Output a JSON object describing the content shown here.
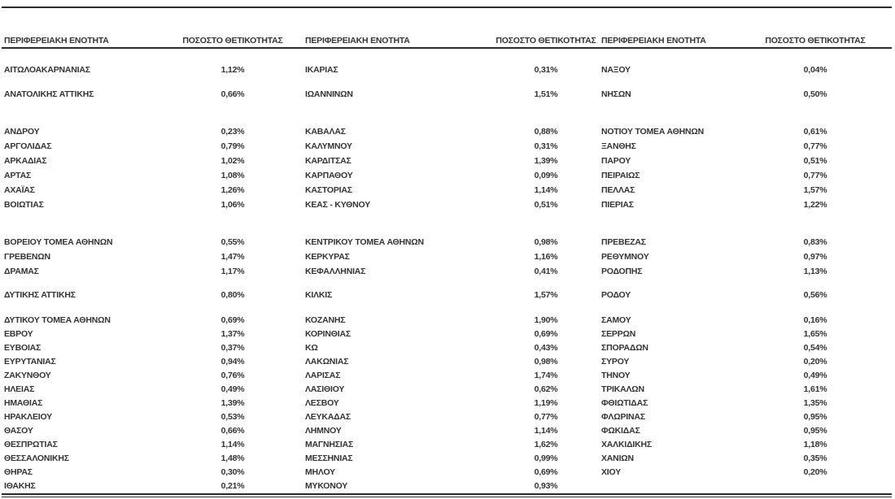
{
  "table": {
    "col_headers": {
      "region": "ΠΕΡΙΦΕΡΕΙΑΚΗ ΕΝΟΤΗΤΑ",
      "positivity": "ΠΟΣΟΣΤΟ ΘΕΤΙΚΟΤΗΤΑΣ"
    },
    "rows": [
      [
        "ΑΙΤΩΛΟΑΚΑΡΝΑΝΙΑΣ",
        "1,12%",
        "ΙΚΑΡΙΑΣ",
        "0,31%",
        "ΝΑΞΟΥ",
        "0,04%"
      ],
      [
        "ΑΝΑΤΟΛΙΚΗΣ ΑΤΤΙΚΗΣ",
        "0,66%",
        "ΙΩΑΝΝΙΝΩΝ",
        "1,51%",
        "ΝΗΣΩΝ",
        "0,50%"
      ],
      [
        "ΑΝΔΡΟΥ",
        "0,23%",
        "ΚΑΒΑΛΑΣ",
        "0,88%",
        "ΝΟΤΙΟΥ ΤΟΜΕΑ ΑΘΗΝΩΝ",
        "0,61%"
      ],
      [
        "ΑΡΓΟΛΙΔΑΣ",
        "0,79%",
        "ΚΑΛΥΜΝΟΥ",
        "0,31%",
        "ΞΑΝΘΗΣ",
        "0,77%"
      ],
      [
        "ΑΡΚΑΔΙΑΣ",
        "1,02%",
        "ΚΑΡΔΙΤΣΑΣ",
        "1,39%",
        "ΠΑΡΟΥ",
        "0,51%"
      ],
      [
        "ΑΡΤΑΣ",
        "1,08%",
        "ΚΑΡΠΑΘΟΥ",
        "0,09%",
        "ΠΕΙΡΑΙΩΣ",
        "0,77%"
      ],
      [
        "ΑΧΑΪΑΣ",
        "1,26%",
        "ΚΑΣΤΟΡΙΑΣ",
        "1,14%",
        "ΠΕΛΛΑΣ",
        "1,57%"
      ],
      [
        "ΒΟΙΩΤΙΑΣ",
        "1,06%",
        "ΚΕΑΣ - ΚΥΘΝΟΥ",
        "0,51%",
        "ΠΙΕΡΙΑΣ",
        "1,22%"
      ],
      [
        "ΒΟΡΕΙΟΥ ΤΟΜΕΑ ΑΘΗΝΩΝ",
        "0,55%",
        "ΚΕΝΤΡΙΚΟΥ ΤΟΜΕΑ ΑΘΗΝΩΝ",
        "0,98%",
        "ΠΡΕΒΕΖΑΣ",
        "0,83%"
      ],
      [
        "ΓΡΕΒΕΝΩΝ",
        "1,47%",
        "ΚΕΡΚΥΡΑΣ",
        "1,16%",
        "ΡΕΘΥΜΝΟΥ",
        "0,97%"
      ],
      [
        "ΔΡΑΜΑΣ",
        "1,17%",
        "ΚΕΦΑΛΛΗΝΙΑΣ",
        "0,41%",
        "ΡΟΔΟΠΗΣ",
        "1,13%"
      ],
      [
        "ΔΥΤΙΚΗΣ ΑΤΤΙΚΗΣ",
        "0,80%",
        "ΚΙΛΚΙΣ",
        "1,57%",
        "ΡΟΔΟΥ",
        "0,56%"
      ],
      [
        "ΔΥΤΙΚΟΥ ΤΟΜΕΑ ΑΘΗΝΩΝ",
        "0,69%",
        "ΚΟΖΑΝΗΣ",
        "1,90%",
        "ΣΑΜΟΥ",
        "0,16%"
      ],
      [
        "ΕΒΡΟΥ",
        "1,37%",
        "ΚΟΡΙΝΘΙΑΣ",
        "0,69%",
        "ΣΕΡΡΩΝ",
        "1,65%"
      ],
      [
        "ΕΥΒΟΙΑΣ",
        "0,37%",
        "ΚΩ",
        "0,43%",
        "ΣΠΟΡΑΔΩΝ",
        "0,54%"
      ],
      [
        "ΕΥΡΥΤΑΝΙΑΣ",
        "0,94%",
        "ΛΑΚΩΝΙΑΣ",
        "0,98%",
        "ΣΥΡΟΥ",
        "0,20%"
      ],
      [
        "ΖΑΚΥΝΘΟΥ",
        "0,76%",
        "ΛΑΡΙΣΑΣ",
        "1,74%",
        "ΤΗΝΟΥ",
        "0,49%"
      ],
      [
        "ΗΛΕΙΑΣ",
        "0,49%",
        "ΛΑΣΙΘΙΟΥ",
        "0,62%",
        "ΤΡΙΚΑΛΩΝ",
        "1,61%"
      ],
      [
        "ΗΜΑΘΙΑΣ",
        "1,39%",
        "ΛΕΣΒΟΥ",
        "1,19%",
        "ΦΘΙΩΤΙΔΑΣ",
        "1,35%"
      ],
      [
        "ΗΡΑΚΛΕΙΟΥ",
        "0,53%",
        "ΛΕΥΚΑΔΑΣ",
        "0,77%",
        "ΦΛΩΡΙΝΑΣ",
        "0,95%"
      ],
      [
        "ΘΑΣΟΥ",
        "0,66%",
        "ΛΗΜΝΟΥ",
        "1,14%",
        "ΦΩΚΙΔΑΣ",
        "0,95%"
      ],
      [
        "ΘΕΣΠΡΩΤΙΑΣ",
        "1,14%",
        "ΜΑΓΝΗΣΙΑΣ",
        "1,62%",
        "ΧΑΛΚΙΔΙΚΗΣ",
        "1,18%"
      ],
      [
        "ΘΕΣΣΑΛΟΝΙΚΗΣ",
        "1,48%",
        "ΜΕΣΣΗΝΙΑΣ",
        "0,99%",
        "ΧΑΝΙΩΝ",
        "0,35%"
      ],
      [
        "ΘΗΡΑΣ",
        "0,30%",
        "ΜΗΛΟΥ",
        "0,69%",
        "ΧΙΟΥ",
        "0,20%"
      ],
      [
        "ΙΘΑΚΗΣ",
        "0,21%",
        "ΜΥΚΟΝΟΥ",
        "0,93%",
        "",
        ""
      ]
    ]
  },
  "colors": {
    "text": "#343434",
    "rule_line": "#2b2b2b",
    "background": "#ffffff"
  }
}
